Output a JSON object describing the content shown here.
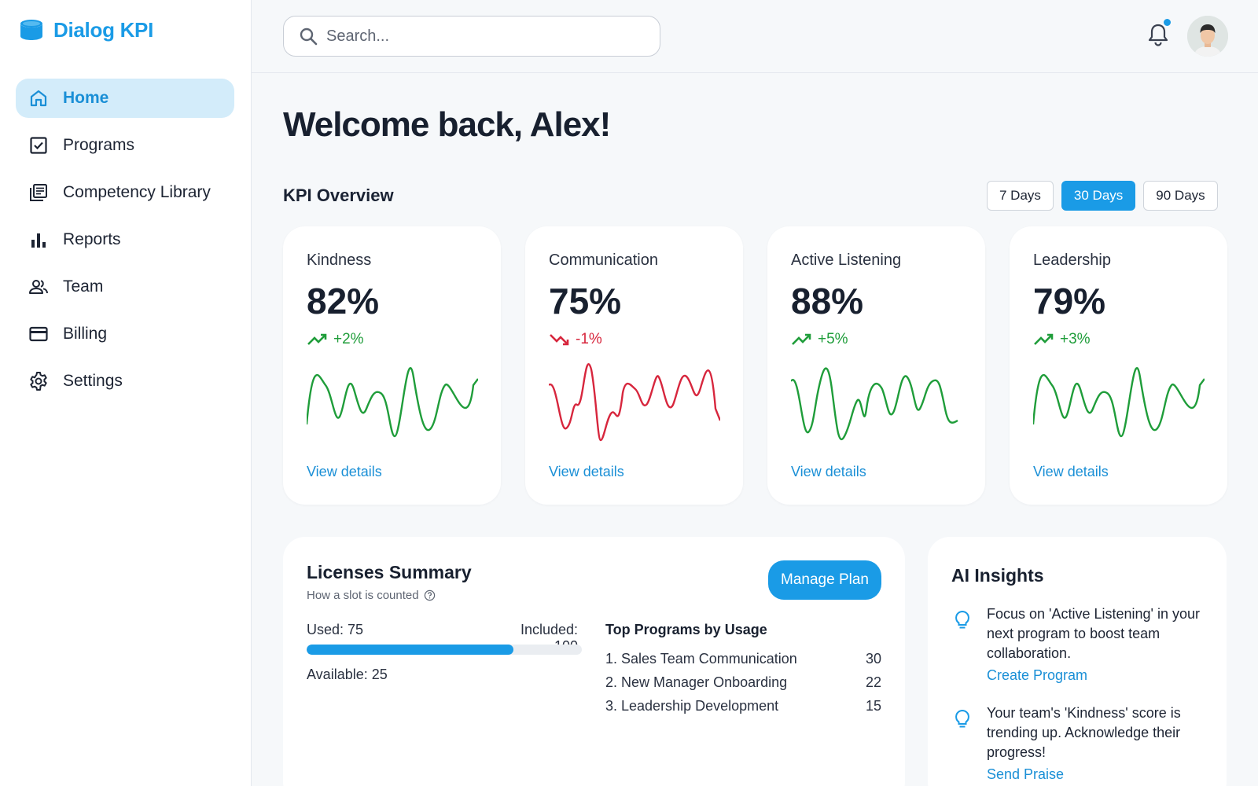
{
  "brand": {
    "name": "Dialog KPI",
    "accent": "#1a9be6"
  },
  "nav": {
    "items": [
      {
        "label": "Home",
        "icon": "home-icon",
        "active": true
      },
      {
        "label": "Programs",
        "icon": "checkbox-icon",
        "active": false
      },
      {
        "label": "Competency Library",
        "icon": "library-icon",
        "active": false
      },
      {
        "label": "Reports",
        "icon": "bar-chart-icon",
        "active": false
      },
      {
        "label": "Team",
        "icon": "team-icon",
        "active": false
      },
      {
        "label": "Billing",
        "icon": "credit-card-icon",
        "active": false
      },
      {
        "label": "Settings",
        "icon": "gear-icon",
        "active": false
      }
    ]
  },
  "header": {
    "search_placeholder": "Search...",
    "notification_icon": "bell-icon",
    "has_unread": true
  },
  "main": {
    "welcome": "Welcome back, Alex!",
    "kpi_title": "KPI Overview",
    "ranges": [
      {
        "label": "7 Days",
        "active": false
      },
      {
        "label": "30 Days",
        "active": true
      },
      {
        "label": "90 Days",
        "active": false
      }
    ]
  },
  "kpis": [
    {
      "name": "Kindness",
      "value": "82%",
      "delta": "+2%",
      "trend": "up",
      "color": "#1f9d3a",
      "link": "View details"
    },
    {
      "name": "Communication",
      "value": "75%",
      "delta": "-1%",
      "trend": "down",
      "color": "#d7263d",
      "link": "View details"
    },
    {
      "name": "Active Listening",
      "value": "88%",
      "delta": "+5%",
      "trend": "up",
      "color": "#1f9d3a",
      "link": "View details"
    },
    {
      "name": "Leadership",
      "value": "79%",
      "delta": "+3%",
      "trend": "up",
      "color": "#1f9d3a",
      "link": "View details"
    }
  ],
  "licenses": {
    "title": "Licenses Summary",
    "subtitle": "How a slot is counted",
    "used_label": "Used: 75",
    "included_label": "Included: 100",
    "available_label": "Available: 25",
    "used_fraction": 0.75,
    "manage_label": "Manage Plan",
    "top_title": "Top Programs by Usage",
    "programs": [
      {
        "name": "1. Sales Team Communication",
        "count": "30"
      },
      {
        "name": "2. New Manager Onboarding",
        "count": "22"
      },
      {
        "name": "3. Leadership Development",
        "count": "15"
      }
    ]
  },
  "ai": {
    "title": "AI Insights",
    "insights": [
      {
        "text": "Focus on 'Active Listening' in your next program to boost team collaboration.",
        "link": "Create Program"
      },
      {
        "text": "Your team's 'Kindness' score is trending up. Acknowledge their progress!",
        "link": "Send Praise"
      }
    ]
  }
}
